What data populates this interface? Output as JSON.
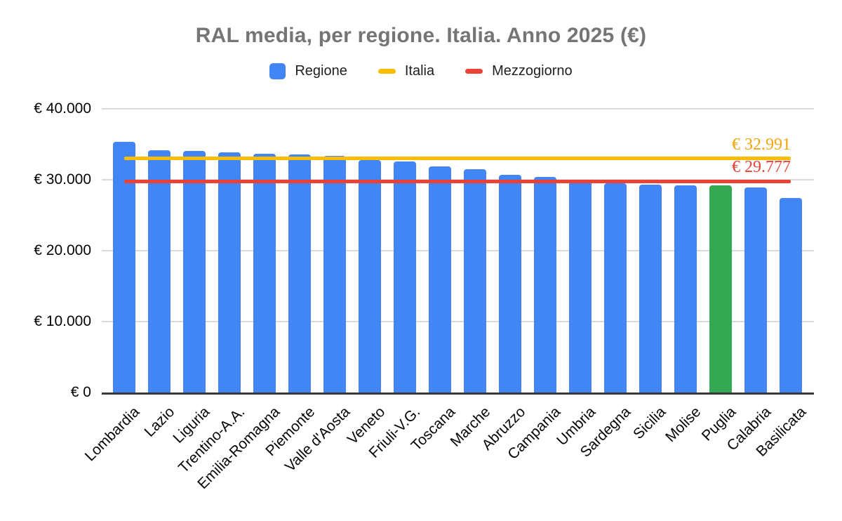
{
  "chart_data": {
    "type": "bar",
    "title": "RAL media, per regione. Italia. Anno 2025 (€)",
    "categories": [
      "Lombardia",
      "Lazio",
      "Liguria",
      "Trentino-A.A.",
      "Emilia-Romagna",
      "Piemonte",
      "Valle d'Aosta",
      "Veneto",
      "Friuli-V.G.",
      "Toscana",
      "Marche",
      "Abruzzo",
      "Campania",
      "Umbria",
      "Sardegna",
      "Sicilia",
      "Molise",
      "Puglia",
      "Calabria",
      "Basilicata"
    ],
    "series": [
      {
        "name": "Regione",
        "values": [
          35300,
          34200,
          34100,
          33900,
          33700,
          33600,
          33400,
          32800,
          32600,
          31900,
          31500,
          30700,
          30400,
          29900,
          29500,
          29300,
          29200,
          29200,
          28900,
          27400
        ]
      }
    ],
    "reference_lines": [
      {
        "name": "Italia",
        "value": 32991,
        "label": "€ 32.991",
        "line_color": "#FBBC04",
        "label_color": "#F1A40B"
      },
      {
        "name": "Mezzogiorno",
        "value": 29777,
        "label": "€ 29.777",
        "line_color": "#EA4335",
        "label_color": "#EA4335"
      }
    ],
    "highlight_category": "Puglia",
    "colors": {
      "bar": "#4285F4",
      "highlight_bar": "#34A853"
    },
    "ylim": [
      0,
      40000
    ],
    "yticks": [
      {
        "value": 40000,
        "label": "€ 40.000"
      },
      {
        "value": 30000,
        "label": "€ 30.000"
      },
      {
        "value": 20000,
        "label": "€ 20.000"
      },
      {
        "value": 10000,
        "label": "€ 10.000"
      },
      {
        "value": 0,
        "label": "€ 0"
      }
    ],
    "grid": true,
    "legend_position": "top",
    "x_label_rotation_deg": -45
  },
  "legend": {
    "items": [
      {
        "label": "Regione",
        "color": "#4285F4",
        "shape": "square"
      },
      {
        "label": "Italia",
        "color": "#FBBC04",
        "shape": "dash"
      },
      {
        "label": "Mezzogiorno",
        "color": "#EA4335",
        "shape": "dash"
      }
    ]
  }
}
